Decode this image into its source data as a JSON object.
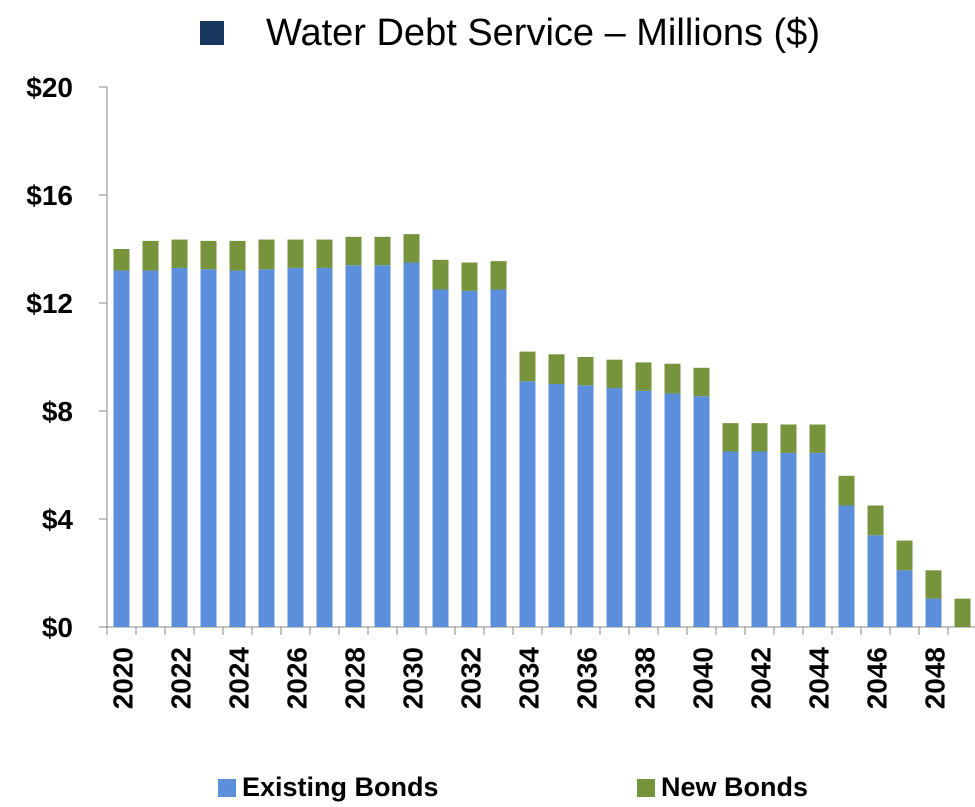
{
  "chart_data": {
    "type": "bar",
    "stacked": true,
    "title": "Water Debt Service – Millions ($)",
    "title_marker_color": "#17375E",
    "x": [
      2020,
      2021,
      2022,
      2023,
      2024,
      2025,
      2026,
      2027,
      2028,
      2029,
      2030,
      2031,
      2032,
      2033,
      2034,
      2035,
      2036,
      2037,
      2038,
      2039,
      2040,
      2041,
      2042,
      2043,
      2044,
      2045,
      2046,
      2047,
      2048,
      2049
    ],
    "x_tick_labels": [
      "2020",
      "2022",
      "2024",
      "2026",
      "2028",
      "2030",
      "2032",
      "2034",
      "2036",
      "2038",
      "2040",
      "2042",
      "2044",
      "2046",
      "2048"
    ],
    "y_tick_labels": [
      "$0",
      "$4",
      "$8",
      "$12",
      "$16",
      "$20"
    ],
    "ylim": [
      0,
      20
    ],
    "grid": false,
    "legend_placement": "bottom",
    "series": [
      {
        "name": "Existing Bonds",
        "color": "#5B8FDB",
        "values": [
          13.2,
          13.2,
          13.3,
          13.25,
          13.2,
          13.25,
          13.3,
          13.3,
          13.4,
          13.4,
          13.5,
          12.5,
          12.45,
          12.5,
          9.1,
          9.0,
          8.95,
          8.85,
          8.75,
          8.65,
          8.55,
          6.5,
          6.5,
          6.45,
          6.45,
          4.5,
          3.4,
          2.1,
          1.05,
          0
        ]
      },
      {
        "name": "New Bonds",
        "color": "#77933C",
        "values": [
          0.8,
          1.1,
          1.05,
          1.05,
          1.1,
          1.1,
          1.05,
          1.05,
          1.05,
          1.05,
          1.05,
          1.1,
          1.05,
          1.05,
          1.1,
          1.1,
          1.05,
          1.05,
          1.05,
          1.1,
          1.05,
          1.05,
          1.05,
          1.05,
          1.05,
          1.1,
          1.1,
          1.1,
          1.05,
          1.05
        ]
      }
    ]
  }
}
